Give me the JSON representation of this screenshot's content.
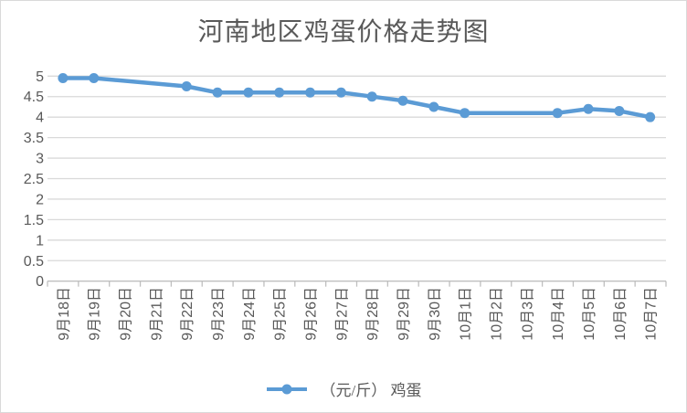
{
  "window": {
    "background": "#ffffff",
    "border_color": "#d9d9d9"
  },
  "chart_data": {
    "type": "line",
    "title": "河南地区鸡蛋价格走势图",
    "categories": [
      "9月18日",
      "9月19日",
      "9月20日",
      "9月21日",
      "9月22日",
      "9月23日",
      "9月24日",
      "9月25日",
      "9月26日",
      "9月27日",
      "9月28日",
      "9月29日",
      "9月30日",
      "10月1日",
      "10月2日",
      "10月3日",
      "10月4日",
      "10月5日",
      "10月6日",
      "10月7日"
    ],
    "series": [
      {
        "name": "（元/斤） 鸡蛋",
        "color": "#5b9bd5",
        "values": [
          4.95,
          4.95,
          null,
          null,
          4.75,
          4.6,
          4.6,
          4.6,
          4.6,
          4.6,
          4.5,
          4.4,
          4.25,
          4.1,
          null,
          null,
          4.1,
          4.2,
          4.15,
          4.0
        ]
      }
    ],
    "ylim": [
      0,
      5
    ],
    "ytick_step": 0.5,
    "ytick_labels": [
      "0",
      "0.5",
      "1",
      "1.5",
      "2",
      "2.5",
      "3",
      "3.5",
      "4",
      "4.5",
      "5"
    ],
    "grid": "horizontal",
    "gridline_color": "#d9d9d9",
    "axis_color": "#bfbfbf",
    "tick_label_color": "#595959",
    "title_color": "#595959",
    "legend_position": "bottom",
    "x_labels_rotated_degrees": 90,
    "notes_missing_points_connected": true
  }
}
